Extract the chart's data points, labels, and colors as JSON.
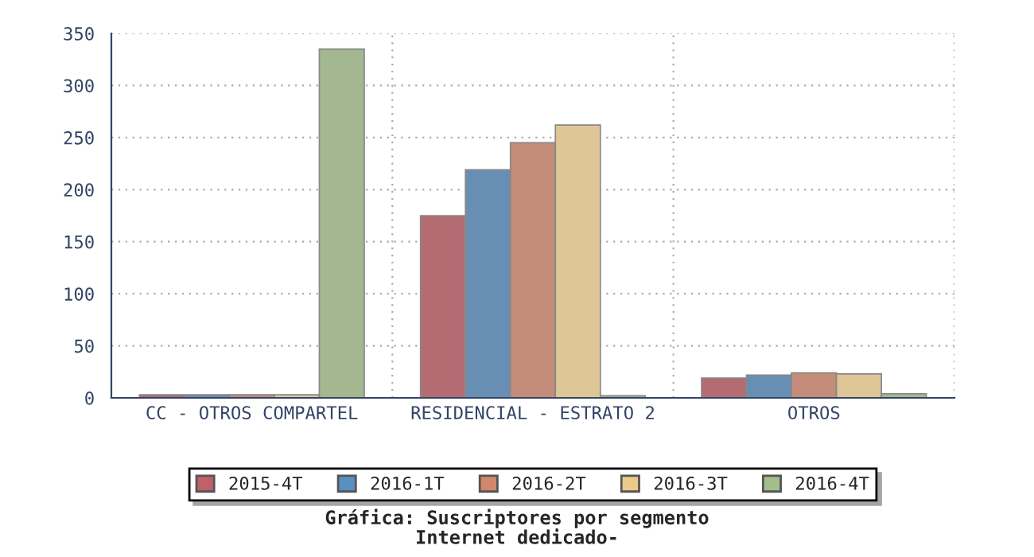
{
  "chart_data": {
    "type": "bar",
    "title": "Gráfica: Suscriptores por segmento\nInternet dedicado-",
    "categories": [
      "CC - OTROS COMPARTEL",
      "RESIDENCIAL - ESTRATO 2",
      "OTROS"
    ],
    "series": [
      {
        "name": "2015-4T",
        "color": "#c0606a",
        "values": [
          3,
          175,
          19
        ]
      },
      {
        "name": "2016-1T",
        "color": "#5b8fc0",
        "values": [
          3,
          219,
          22
        ]
      },
      {
        "name": "2016-2T",
        "color": "#d0876d",
        "values": [
          3,
          245,
          24
        ]
      },
      {
        "name": "2016-3T",
        "color": "#ebca8a",
        "values": [
          3,
          262,
          23
        ]
      },
      {
        "name": "2016-4T",
        "color": "#a3be8a",
        "values": [
          335,
          2,
          4
        ]
      }
    ],
    "ylim": [
      0,
      350
    ],
    "yticks": [
      0,
      50,
      100,
      150,
      200,
      250,
      300,
      350
    ],
    "grid": true,
    "legend": "bottom"
  }
}
